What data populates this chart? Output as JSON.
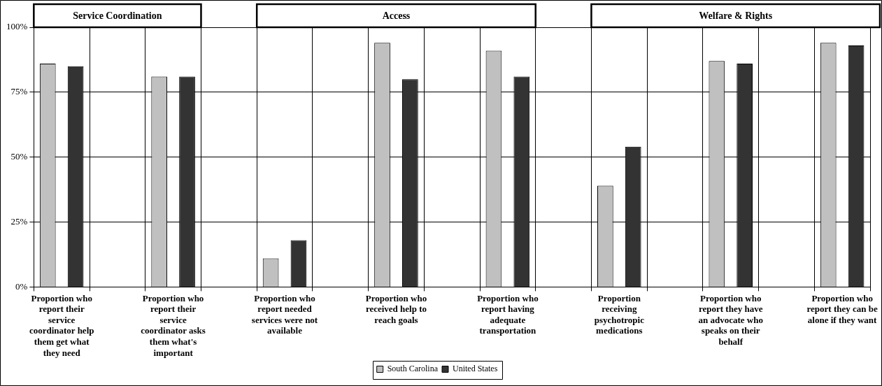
{
  "chart_data": {
    "type": "bar",
    "categories": [
      "Proportion who report their service coordinator help them get what they need",
      null,
      "Proportion who report their service coordinator asks them what's important",
      null,
      "Proportion who report needed services were not available",
      null,
      "Proportion who received help to reach goals",
      null,
      "Proportion who report having adequate transportation",
      null,
      "Proportion receiving psychotropic medications",
      null,
      "Proportion who report they have an advocate who speaks on their behalf",
      null,
      "Proportion who report they can be alone if they want"
    ],
    "series": [
      {
        "name": "South Carolina",
        "color": "#c0c0c0",
        "values": [
          86,
          null,
          81,
          null,
          11,
          null,
          94,
          null,
          91,
          null,
          39,
          null,
          87,
          null,
          94
        ]
      },
      {
        "name": "United States",
        "color": "#333333",
        "values": [
          85,
          null,
          81,
          null,
          18,
          null,
          80,
          null,
          81,
          null,
          54,
          null,
          86,
          null,
          93
        ]
      }
    ],
    "ylim": [
      0,
      100
    ],
    "yticks": [
      {
        "value": 0,
        "label": "0%"
      },
      {
        "value": 25,
        "label": "25%"
      },
      {
        "value": 50,
        "label": "50%"
      },
      {
        "value": 75,
        "label": "75%"
      },
      {
        "value": 100,
        "label": "100%"
      }
    ],
    "annotations": [
      "Service Coordination",
      "Access",
      "Welfare & Rights"
    ],
    "grid": true,
    "legend": "bottom"
  }
}
